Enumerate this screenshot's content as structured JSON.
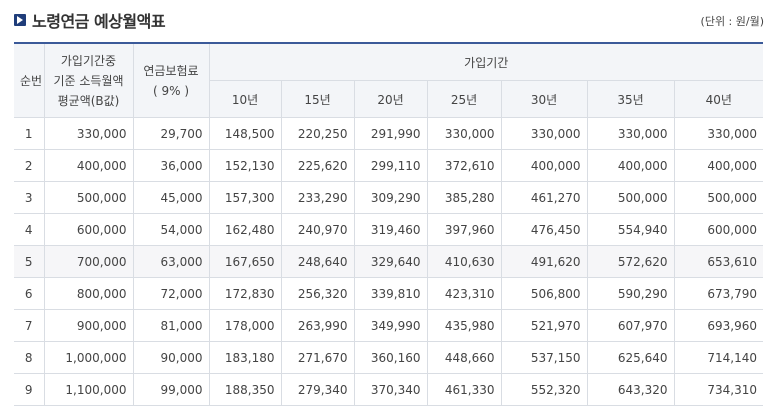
{
  "header": {
    "title": "노령연금 예상월액표",
    "unit": "(단위 : 원/월)"
  },
  "table": {
    "col_no": "순번",
    "col_income": [
      "가입기간중",
      "기준 소득월액",
      "평균액(B값)"
    ],
    "col_premium": [
      "연금보험료",
      "( 9% )"
    ],
    "col_period": "가입기간",
    "periods": [
      "10년",
      "15년",
      "20년",
      "25년",
      "30년",
      "35년",
      "40년"
    ],
    "highlight_row": 4,
    "rows": [
      {
        "no": "1",
        "income": "330,000",
        "premium": "29,700",
        "values": [
          "148,500",
          "220,250",
          "291,990",
          "330,000",
          "330,000",
          "330,000",
          "330,000"
        ]
      },
      {
        "no": "2",
        "income": "400,000",
        "premium": "36,000",
        "values": [
          "152,130",
          "225,620",
          "299,110",
          "372,610",
          "400,000",
          "400,000",
          "400,000"
        ]
      },
      {
        "no": "3",
        "income": "500,000",
        "premium": "45,000",
        "values": [
          "157,300",
          "233,290",
          "309,290",
          "385,280",
          "461,270",
          "500,000",
          "500,000"
        ]
      },
      {
        "no": "4",
        "income": "600,000",
        "premium": "54,000",
        "values": [
          "162,480",
          "240,970",
          "319,460",
          "397,960",
          "476,450",
          "554,940",
          "600,000"
        ]
      },
      {
        "no": "5",
        "income": "700,000",
        "premium": "63,000",
        "values": [
          "167,650",
          "248,640",
          "329,640",
          "410,630",
          "491,620",
          "572,620",
          "653,610"
        ]
      },
      {
        "no": "6",
        "income": "800,000",
        "premium": "72,000",
        "values": [
          "172,830",
          "256,320",
          "339,810",
          "423,310",
          "506,800",
          "590,290",
          "673,790"
        ]
      },
      {
        "no": "7",
        "income": "900,000",
        "premium": "81,000",
        "values": [
          "178,000",
          "263,990",
          "349,990",
          "435,980",
          "521,970",
          "607,970",
          "693,960"
        ]
      },
      {
        "no": "8",
        "income": "1,000,000",
        "premium": "90,000",
        "values": [
          "183,180",
          "271,670",
          "360,160",
          "448,660",
          "537,150",
          "625,640",
          "714,140"
        ]
      },
      {
        "no": "9",
        "income": "1,100,000",
        "premium": "99,000",
        "values": [
          "188,350",
          "279,340",
          "370,340",
          "461,330",
          "552,320",
          "643,320",
          "734,310"
        ]
      }
    ]
  }
}
